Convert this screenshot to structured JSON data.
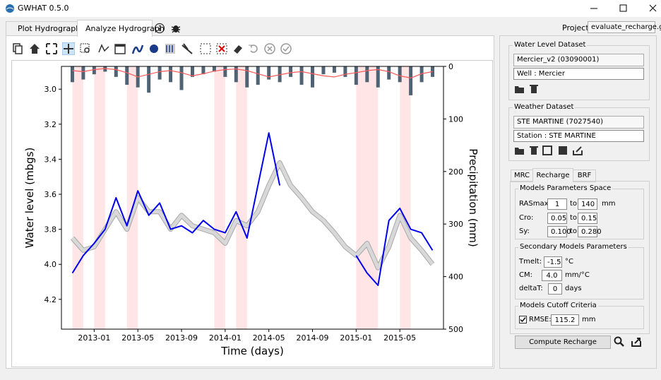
{
  "window": {
    "title": "GWHAT 0.5.0"
  },
  "tabs": [
    "Plot Hydrograph",
    "Analyze Hydrograph"
  ],
  "project": {
    "label": "Project :",
    "value": "evaluate_recharge.gwt"
  },
  "water_level": {
    "title": "Water Level Dataset",
    "dataset": "Mercier_v2 (03090001)",
    "well": "Well : Mercier"
  },
  "weather": {
    "title": "Weather Dataset",
    "dataset": "STE MARTINE (7027540)",
    "station": "Station : STE MARTINE"
  },
  "subtabs": [
    "MRC",
    "Recharge",
    "BRF"
  ],
  "params": {
    "title": "Models Parameters Space",
    "rows": [
      {
        "label": "RASmax:",
        "min": "1",
        "to": "to",
        "max": "140",
        "unit": "mm"
      },
      {
        "label": "Cro:",
        "min": "0.05",
        "to": "to",
        "max": "0.15"
      },
      {
        "label": "Sy:",
        "min": "0.100",
        "to": "to",
        "max": "0.280"
      }
    ]
  },
  "secondary": {
    "title": "Secondary Models Parameters",
    "rows": [
      {
        "label": "Tmelt:",
        "value": "-1.5",
        "unit": "°C"
      },
      {
        "label": "CM:",
        "value": "4.0",
        "unit": "mm/°C"
      },
      {
        "label": "deltaT:",
        "value": "0",
        "unit": "days"
      }
    ]
  },
  "cutoff": {
    "title": "Models Cutoff Criteria",
    "label": "RMSE:",
    "value": "115.2",
    "unit": "mm"
  },
  "button": "Compute Recharge",
  "chart_data": {
    "type": "hydrograph",
    "x_label": "Time (days)",
    "y_label": "Water level (mbgs)",
    "y2_label": "Precipitation (mm)",
    "xlim": [
      "2012-10",
      "2015-09"
    ],
    "xticks": [
      "2013-01",
      "2013-05",
      "2013-09",
      "2014-01",
      "2014-05",
      "2014-09",
      "2015-01",
      "2015-05"
    ],
    "ylim": [
      4.37,
      2.87
    ],
    "yticks": [
      {
        "value": 3,
        "label": "3.0"
      },
      {
        "value": 3.2,
        "label": "3.2"
      },
      {
        "value": 3.4,
        "label": "3.4"
      },
      {
        "value": 3.6,
        "label": "3.6"
      },
      {
        "value": 3.8,
        "label": "3.8"
      },
      {
        "value": 4,
        "label": "4.0"
      },
      {
        "value": 4.2,
        "label": "4.2"
      }
    ],
    "y2lim": [
      500,
      0
    ],
    "y2ticks": [
      0,
      100,
      200,
      300,
      400,
      500
    ],
    "x": [
      "2012-11",
      "2012-12",
      "2013-01",
      "2013-02",
      "2013-03",
      "2013-04",
      "2013-05",
      "2013-06",
      "2013-07",
      "2013-08",
      "2013-09",
      "2013-10",
      "2013-11",
      "2013-12",
      "2014-01",
      "2014-02",
      "2014-03",
      "2014-04",
      "2014-05",
      "2014-06",
      "2014-07",
      "2014-08",
      "2014-09",
      "2014-10",
      "2014-11",
      "2014-12",
      "2015-01",
      "2015-02",
      "2015-03",
      "2015-04",
      "2015-05",
      "2015-06",
      "2015-07",
      "2015-08"
    ],
    "recession_periods": [
      [
        "2012-11",
        "2012-12"
      ],
      [
        "2013-01",
        "2013-02"
      ],
      [
        "2013-04",
        "2013-05"
      ],
      [
        "2013-12",
        "2014-01"
      ],
      [
        "2014-02",
        "2014-03"
      ],
      [
        "2015-01",
        "2015-03"
      ],
      [
        "2015-05",
        "2015-06"
      ]
    ],
    "recession_color": "rgba(255,80,80,0.15)",
    "series": [
      {
        "kind": "bar",
        "axis": "y2",
        "color": "#4f6375",
        "values": [
          30,
          25,
          15,
          10,
          20,
          35,
          40,
          50,
          25,
          30,
          45,
          20,
          15,
          10,
          20,
          30,
          40,
          35,
          25,
          30,
          20,
          35,
          40,
          15,
          12,
          20,
          35,
          30,
          40,
          25,
          30,
          55,
          30,
          20
        ]
      },
      {
        "kind": "line",
        "axis": "y2",
        "color": "#ff5a5a",
        "values": [
          8,
          10,
          6,
          4,
          6,
          12,
          20,
          15,
          10,
          8,
          12,
          18,
          14,
          9,
          6,
          5,
          8,
          14,
          20,
          16,
          12,
          10,
          14,
          18,
          20,
          15,
          12,
          8,
          6,
          10,
          18,
          22,
          14,
          10
        ]
      },
      {
        "kind": "band",
        "color": "#a8a8a8",
        "values": [
          3.85,
          3.92,
          3.9,
          3.8,
          3.7,
          3.8,
          3.62,
          3.7,
          3.7,
          3.8,
          3.72,
          3.78,
          3.8,
          3.82,
          3.88,
          3.75,
          3.78,
          3.7,
          3.55,
          3.42,
          3.55,
          3.62,
          3.7,
          3.75,
          3.82,
          3.9,
          3.95,
          3.88,
          4.02,
          3.9,
          3.72,
          3.85,
          3.92,
          4.0
        ]
      },
      {
        "kind": "line",
        "color": "#0000ee",
        "values": [
          4.05,
          3.95,
          3.88,
          3.8,
          3.62,
          3.78,
          3.58,
          3.72,
          3.65,
          3.8,
          3.78,
          3.82,
          3.75,
          3.8,
          3.82,
          3.7,
          3.85,
          3.55,
          3.25,
          3.55,
          null,
          null,
          null,
          null,
          null,
          null,
          3.95,
          4.05,
          4.12,
          3.75,
          3.68,
          3.8,
          3.82,
          3.92
        ]
      }
    ]
  }
}
